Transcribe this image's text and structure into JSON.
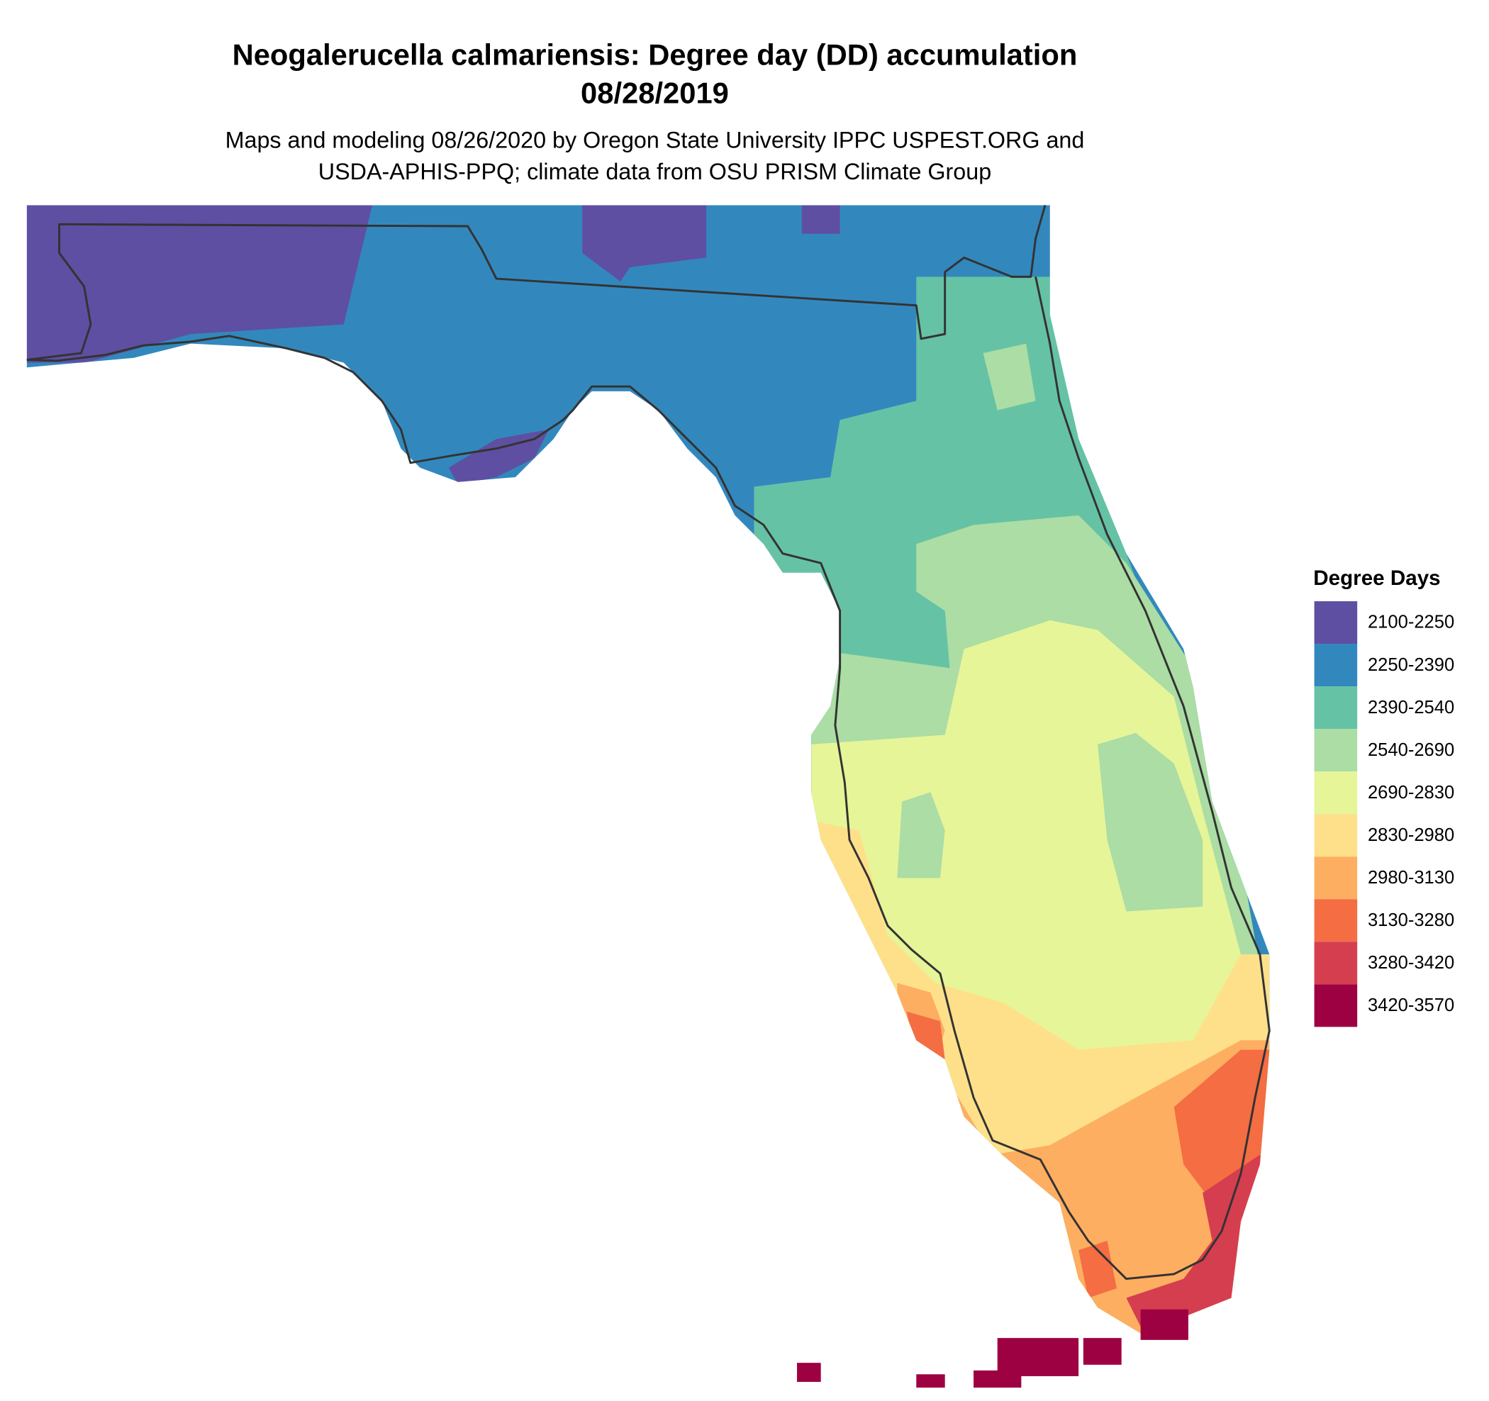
{
  "title": [
    "Neogalerucella calmariensis: Degree day (DD) accumulation",
    "08/28/2019"
  ],
  "subtitle": [
    "Maps and modeling 08/26/2020 by Oregon State University IPPC USPEST.ORG and",
    "USDA-APHIS-PPQ; climate data from OSU PRISM Climate Group"
  ],
  "legend": {
    "title": "Degree Days",
    "items": [
      {
        "label": "2100-2250",
        "color": "#5e4fa2"
      },
      {
        "label": "2250-2390",
        "color": "#3288bd"
      },
      {
        "label": "2390-2540",
        "color": "#66c2a5"
      },
      {
        "label": "2540-2690",
        "color": "#abdda4"
      },
      {
        "label": "2690-2830",
        "color": "#e6f598"
      },
      {
        "label": "2830-2980",
        "color": "#fee08b"
      },
      {
        "label": "2980-3130",
        "color": "#fdae61"
      },
      {
        "label": "3130-3280",
        "color": "#f46d43"
      },
      {
        "label": "3280-3420",
        "color": "#d53e4f"
      },
      {
        "label": "3420-3570",
        "color": "#9e0142"
      }
    ]
  }
}
